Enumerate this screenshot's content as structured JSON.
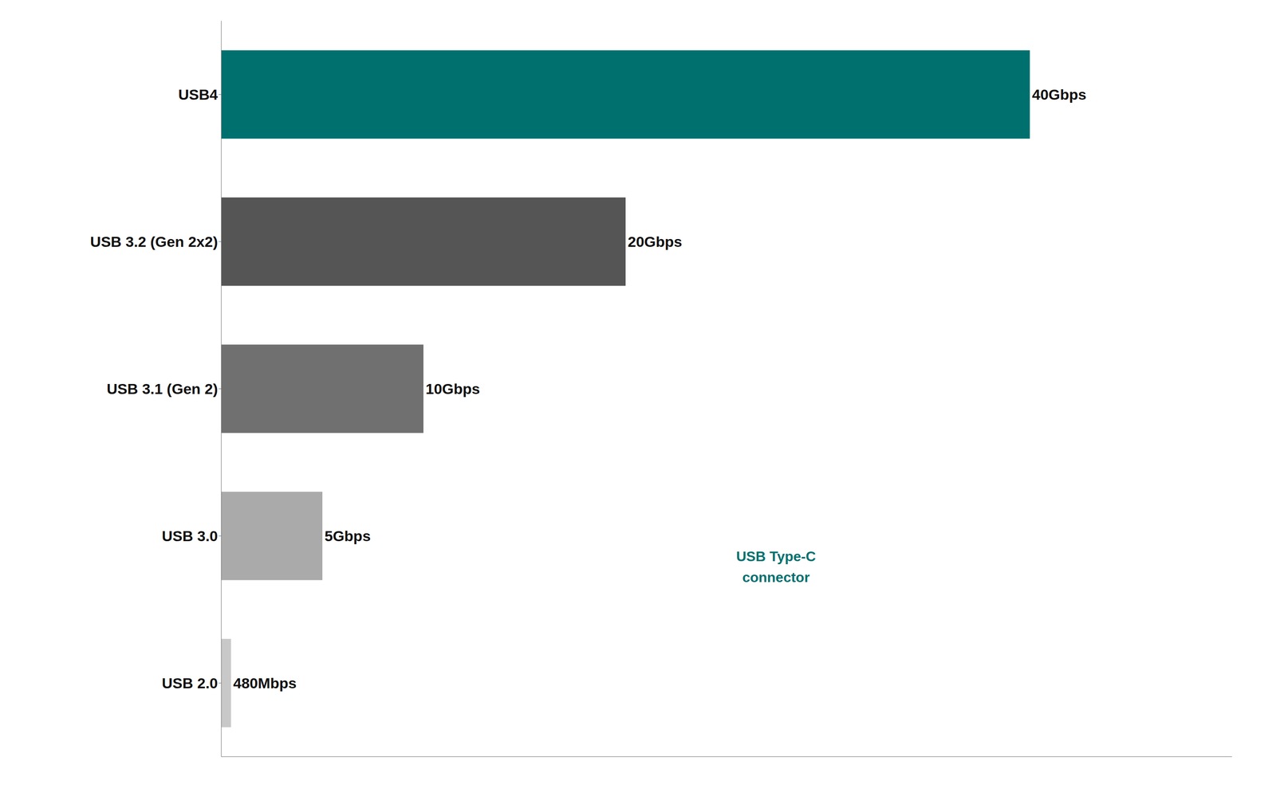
{
  "chart_data": {
    "type": "bar",
    "orientation": "horizontal",
    "categories": [
      "USB4",
      "USB 3.2 (Gen 2x2)",
      "USB 3.1 (Gen 2)",
      "USB 3.0",
      "USB 2.0"
    ],
    "values": [
      40,
      20,
      10,
      5,
      0.48
    ],
    "value_labels": [
      "40Gbps",
      "20Gbps",
      "10Gbps",
      "5Gbps",
      "480Mbps"
    ],
    "colors": [
      "#00706e",
      "#555555",
      "#707070",
      "#aaaaaa",
      "#c8c8c8"
    ],
    "xlim": [
      0,
      50
    ],
    "data_labels": true,
    "tick_labels": "y",
    "grid": false,
    "annotations": [
      {
        "text": "USB Type-C\nconnector",
        "color": "#00706e"
      }
    ]
  }
}
